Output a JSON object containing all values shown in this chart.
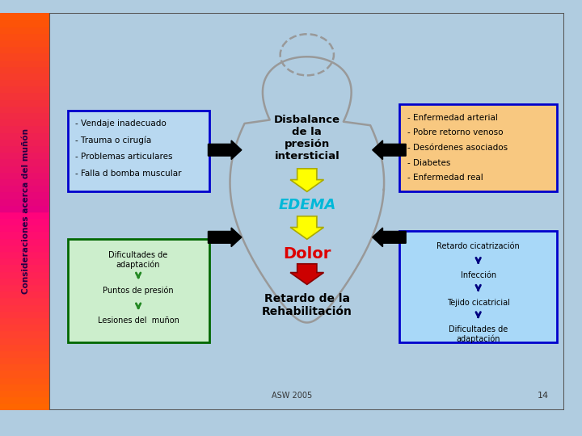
{
  "outer_bg": "#b0cce0",
  "slide_bg": "#e8e8e0",
  "title_text": "Consideraciones acerca del muñón",
  "left_box1_bg": "#b8d8f0",
  "left_box1_border": "#0000cc",
  "left_box1_lines": [
    "- Vendaje inadecuado",
    "- Trauma o cirugía",
    "- Problemas articulares",
    "- Falla d bomba muscular"
  ],
  "left_box2_bg": "#cceecc",
  "left_box2_border": "#006600",
  "right_box1_bg": "#f8c880",
  "right_box1_border": "#0000cc",
  "right_box1_lines": [
    "- Enfermedad arterial",
    "- Pobre retorno venoso",
    "- Desórdenes asociados",
    "- Diabetes",
    "- Enfermedad real"
  ],
  "right_box2_bg": "#a8d8f8",
  "right_box2_border": "#0000cc",
  "center_disbalance": "Disbalance\nde la\npresión\nintersticial",
  "center_edema": "EDEMA",
  "center_dolor": "Dolor",
  "center_retardo": "Retardo de la\nRehabilitación",
  "footer": "ASW 2005",
  "page_num": "14",
  "body_color": "#c0c0c0"
}
